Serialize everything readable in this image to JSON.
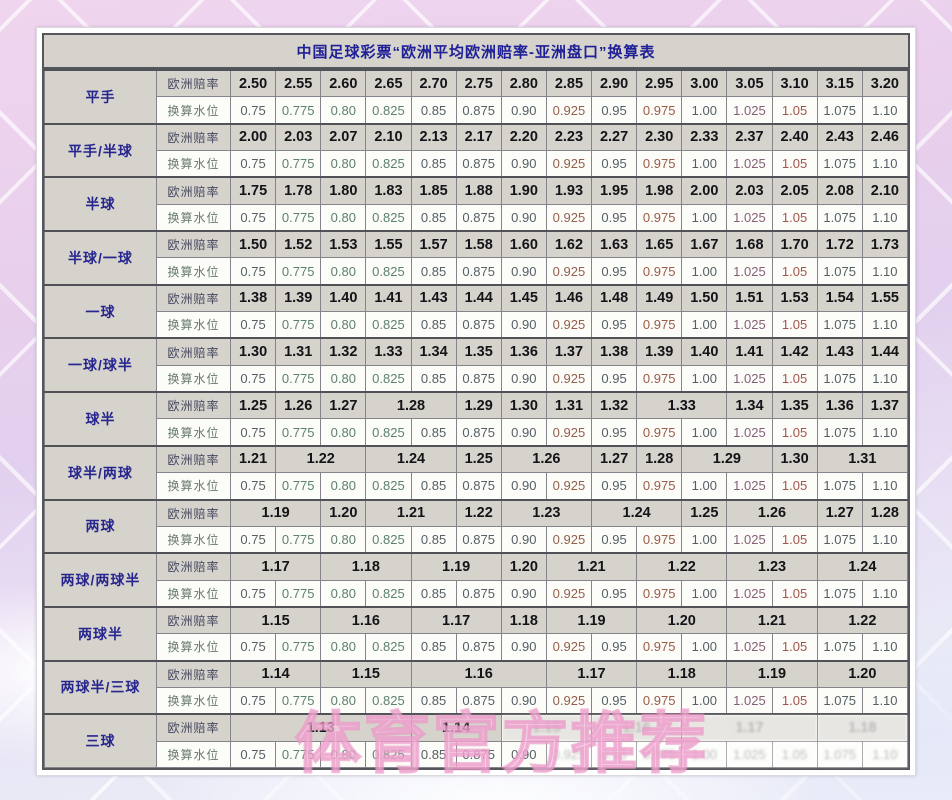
{
  "title": "中国足球彩票“欧洲平均欧洲赔率-亚洲盘口”换算表",
  "watermark": "体育官方推荐",
  "labels": {
    "odds_row": "欧洲赔率",
    "water_row": "换算水位"
  },
  "water_levels": [
    "0.75",
    "0.775",
    "0.80",
    "0.825",
    "0.85",
    "0.875",
    "0.90",
    "0.925",
    "0.95",
    "0.975",
    "1.00",
    "1.025",
    "1.05",
    "1.075",
    "1.10"
  ],
  "colors": {
    "title_text": "#1f1f96",
    "category_text": "#26268e",
    "odds_row_bg": "#d6d3cd",
    "water_row_bg": "#fcfcf8",
    "table_border": "#55555c",
    "watermark_pink": "#e682ba",
    "wallpaper_pink": "#eed3ec",
    "wallpaper_blue": "#eaedf8"
  },
  "groups": [
    {
      "handicap": "平手",
      "odds": [
        [
          "2.50",
          1
        ],
        [
          "2.55",
          1
        ],
        [
          "2.60",
          1
        ],
        [
          "2.65",
          1
        ],
        [
          "2.70",
          1
        ],
        [
          "2.75",
          1
        ],
        [
          "2.80",
          1
        ],
        [
          "2.85",
          1
        ],
        [
          "2.90",
          1
        ],
        [
          "2.95",
          1
        ],
        [
          "3.00",
          1
        ],
        [
          "3.05",
          1
        ],
        [
          "3.10",
          1
        ],
        [
          "3.15",
          1
        ],
        [
          "3.20",
          1
        ]
      ]
    },
    {
      "handicap": "平手/半球",
      "odds": [
        [
          "2.00",
          1
        ],
        [
          "2.03",
          1
        ],
        [
          "2.07",
          1
        ],
        [
          "2.10",
          1
        ],
        [
          "2.13",
          1
        ],
        [
          "2.17",
          1
        ],
        [
          "2.20",
          1
        ],
        [
          "2.23",
          1
        ],
        [
          "2.27",
          1
        ],
        [
          "2.30",
          1
        ],
        [
          "2.33",
          1
        ],
        [
          "2.37",
          1
        ],
        [
          "2.40",
          1
        ],
        [
          "2.43",
          1
        ],
        [
          "2.46",
          1
        ]
      ]
    },
    {
      "handicap": "半球",
      "odds": [
        [
          "1.75",
          1
        ],
        [
          "1.78",
          1
        ],
        [
          "1.80",
          1
        ],
        [
          "1.83",
          1
        ],
        [
          "1.85",
          1
        ],
        [
          "1.88",
          1
        ],
        [
          "1.90",
          1
        ],
        [
          "1.93",
          1
        ],
        [
          "1.95",
          1
        ],
        [
          "1.98",
          1
        ],
        [
          "2.00",
          1
        ],
        [
          "2.03",
          1
        ],
        [
          "2.05",
          1
        ],
        [
          "2.08",
          1
        ],
        [
          "2.10",
          1
        ]
      ]
    },
    {
      "handicap": "半球/一球",
      "odds": [
        [
          "1.50",
          1
        ],
        [
          "1.52",
          1
        ],
        [
          "1.53",
          1
        ],
        [
          "1.55",
          1
        ],
        [
          "1.57",
          1
        ],
        [
          "1.58",
          1
        ],
        [
          "1.60",
          1
        ],
        [
          "1.62",
          1
        ],
        [
          "1.63",
          1
        ],
        [
          "1.65",
          1
        ],
        [
          "1.67",
          1
        ],
        [
          "1.68",
          1
        ],
        [
          "1.70",
          1
        ],
        [
          "1.72",
          1
        ],
        [
          "1.73",
          1
        ]
      ]
    },
    {
      "handicap": "一球",
      "odds": [
        [
          "1.38",
          1
        ],
        [
          "1.39",
          1
        ],
        [
          "1.40",
          1
        ],
        [
          "1.41",
          1
        ],
        [
          "1.43",
          1
        ],
        [
          "1.44",
          1
        ],
        [
          "1.45",
          1
        ],
        [
          "1.46",
          1
        ],
        [
          "1.48",
          1
        ],
        [
          "1.49",
          1
        ],
        [
          "1.50",
          1
        ],
        [
          "1.51",
          1
        ],
        [
          "1.53",
          1
        ],
        [
          "1.54",
          1
        ],
        [
          "1.55",
          1
        ]
      ]
    },
    {
      "handicap": "一球/球半",
      "odds": [
        [
          "1.30",
          1
        ],
        [
          "1.31",
          1
        ],
        [
          "1.32",
          1
        ],
        [
          "1.33",
          1
        ],
        [
          "1.34",
          1
        ],
        [
          "1.35",
          1
        ],
        [
          "1.36",
          1
        ],
        [
          "1.37",
          1
        ],
        [
          "1.38",
          1
        ],
        [
          "1.39",
          1
        ],
        [
          "1.40",
          1
        ],
        [
          "1.41",
          1
        ],
        [
          "1.42",
          1
        ],
        [
          "1.43",
          1
        ],
        [
          "1.44",
          1
        ]
      ]
    },
    {
      "handicap": "球半",
      "odds": [
        [
          "1.25",
          1
        ],
        [
          "1.26",
          1
        ],
        [
          "1.27",
          1
        ],
        [
          "1.28",
          2
        ],
        [
          "1.29",
          1
        ],
        [
          "1.30",
          1
        ],
        [
          "1.31",
          1
        ],
        [
          "1.32",
          1
        ],
        [
          "1.33",
          2
        ],
        [
          "1.34",
          1
        ],
        [
          "1.35",
          1
        ],
        [
          "1.36",
          1
        ],
        [
          "1.37",
          1
        ]
      ]
    },
    {
      "handicap": "球半/两球",
      "odds": [
        [
          "1.21",
          1
        ],
        [
          "1.22",
          2
        ],
        [
          "1.24",
          2
        ],
        [
          "1.25",
          1
        ],
        [
          "1.26",
          2
        ],
        [
          "1.27",
          1
        ],
        [
          "1.28",
          1
        ],
        [
          "1.29",
          2
        ],
        [
          "1.30",
          1
        ],
        [
          "1.31",
          2
        ]
      ]
    },
    {
      "handicap": "两球",
      "odds": [
        [
          "1.19",
          2
        ],
        [
          "1.20",
          1
        ],
        [
          "1.21",
          2
        ],
        [
          "1.22",
          1
        ],
        [
          "1.23",
          2
        ],
        [
          "1.24",
          2
        ],
        [
          "1.25",
          1
        ],
        [
          "1.26",
          2
        ],
        [
          "1.27",
          1
        ],
        [
          "1.28",
          1
        ]
      ]
    },
    {
      "handicap": "两球/两球半",
      "odds": [
        [
          "1.17",
          2
        ],
        [
          "1.18",
          2
        ],
        [
          "1.19",
          2
        ],
        [
          "1.20",
          1
        ],
        [
          "1.21",
          2
        ],
        [
          "1.22",
          2
        ],
        [
          "1.23",
          2
        ],
        [
          "1.24",
          2
        ]
      ]
    },
    {
      "handicap": "两球半",
      "odds": [
        [
          "1.15",
          2
        ],
        [
          "1.16",
          2
        ],
        [
          "1.17",
          2
        ],
        [
          "1.18",
          1
        ],
        [
          "1.19",
          2
        ],
        [
          "1.20",
          2
        ],
        [
          "1.21",
          2
        ],
        [
          "1.22",
          2
        ]
      ]
    },
    {
      "handicap": "两球半/三球",
      "odds": [
        [
          "1.14",
          2
        ],
        [
          "1.15",
          2
        ],
        [
          "1.16",
          3
        ],
        [
          "1.17",
          2
        ],
        [
          "1.18",
          2
        ],
        [
          "1.19",
          2
        ],
        [
          "1.20",
          2
        ]
      ]
    },
    {
      "handicap": "三球",
      "odds": [
        [
          "1.13",
          4
        ],
        [
          "1.14",
          2
        ],
        [
          "1.15",
          2
        ],
        [
          "1.16",
          2
        ],
        [
          "1.17",
          3
        ],
        [
          "1.18",
          2
        ]
      ],
      "degraded_odds_from": 2,
      "degraded_water_from": 7
    }
  ]
}
